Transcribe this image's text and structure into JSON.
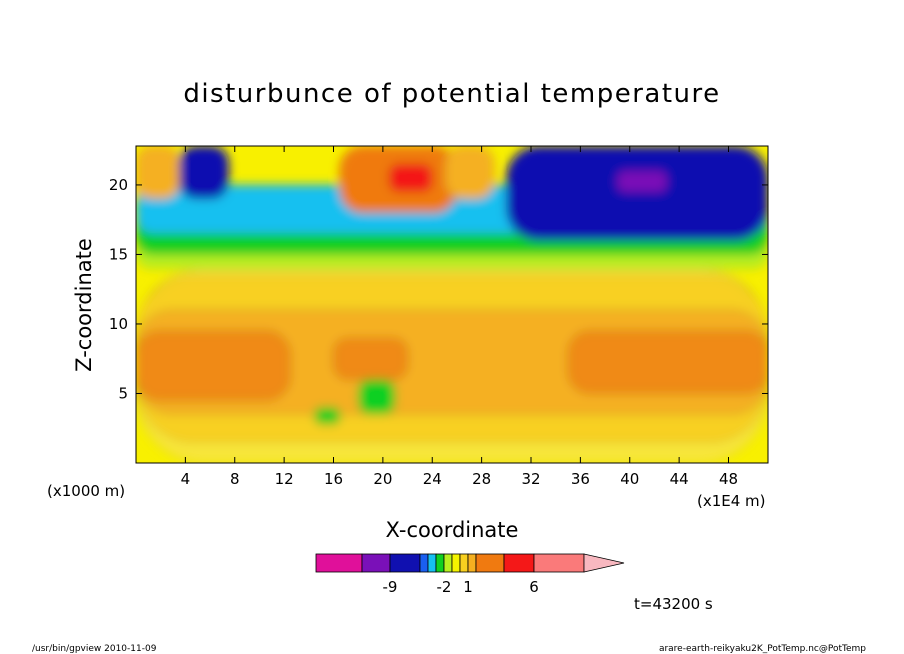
{
  "chart_data": {
    "type": "heatmap",
    "title": "disturbunce of potential temperature",
    "xlabel": "X-coordinate",
    "ylabel": "Z-coordinate",
    "x_unit_label": "(x1000 m)",
    "x_scale_label": "(x1E4 m)",
    "xlim": [
      0,
      51.2
    ],
    "ylim": [
      0,
      22.8
    ],
    "x_ticks": [
      4,
      8,
      12,
      16,
      20,
      24,
      28,
      32,
      36,
      40,
      44,
      48
    ],
    "y_ticks": [
      5,
      10,
      15,
      20
    ],
    "colorbar": {
      "labels": [
        {
          "text": "-9",
          "index": 1
        },
        {
          "text": "-2",
          "index": 5
        },
        {
          "text": "1",
          "index": 8
        },
        {
          "text": "6",
          "index": 11
        }
      ],
      "colors": [
        "#e0109a",
        "#7a10b8",
        "#1010b0",
        "#1a5ff0",
        "#16c0f0",
        "#10d020",
        "#b8f020",
        "#f4f400",
        "#f8d020",
        "#f5b020",
        "#f07a10",
        "#f41818",
        "#fa7a7a",
        "#f8b8c0"
      ]
    },
    "time_label": "t=43200 s",
    "footer_left": "/usr/bin/gpview   2010-11-09",
    "footer_right": "arare-earth-reikyaku2K_PotTemp.nc@PotTemp",
    "regions": [
      {
        "level": "lo1",
        "color": "#f8e63a",
        "x0": 0,
        "x1": 51.2,
        "z0": 0,
        "z1": 14
      },
      {
        "level": "lo2",
        "color": "#f8d020",
        "x0": 0,
        "x1": 51.2,
        "z0": 1.5,
        "z1": 13.5
      },
      {
        "level": "lo3",
        "color": "#f5b020",
        "x0": 0,
        "x1": 51.2,
        "z0": 3.5,
        "z1": 11
      },
      {
        "level": "lo4",
        "color": "#f08a18",
        "x0": 0,
        "x1": 12.5,
        "z0": 4.5,
        "z1": 9.5
      },
      {
        "level": "lo5",
        "color": "#f08a18",
        "x0": 35,
        "x1": 51.2,
        "z0": 5,
        "z1": 9.5
      },
      {
        "level": "lo6",
        "color": "#f08a18",
        "x0": 16,
        "x1": 22,
        "z0": 6,
        "z1": 9
      },
      {
        "level": "mid1",
        "color": "#b8f020",
        "x0": 0,
        "x1": 51.2,
        "z0": 14,
        "z1": 17
      },
      {
        "level": "mid2",
        "color": "#10d020",
        "x0": 0,
        "x1": 51.2,
        "z0": 15,
        "z1": 18.5
      },
      {
        "level": "mid3",
        "color": "#16c0f0",
        "x0": 0,
        "x1": 51.2,
        "z0": 16.5,
        "z1": 20
      },
      {
        "level": "hi1",
        "color": "#1010b0",
        "x0": 3.5,
        "x1": 7.5,
        "z0": 19,
        "z1": 22.8
      },
      {
        "level": "hi2",
        "color": "#1010b0",
        "x0": 30,
        "x1": 51.2,
        "z0": 16,
        "z1": 22.8
      },
      {
        "level": "hi3",
        "color": "#7a10b8",
        "x0": 39,
        "x1": 43,
        "z0": 19.5,
        "z1": 21
      },
      {
        "level": "hi4",
        "color": "#f07a10",
        "x0": 16.5,
        "x1": 26,
        "z0": 18,
        "z1": 22.8
      },
      {
        "level": "hi5",
        "color": "#f41818",
        "x0": 20.5,
        "x1": 24,
        "z0": 19.5,
        "z1": 21.5
      },
      {
        "level": "hi6",
        "color": "#f5b020",
        "x0": 0,
        "x1": 3.5,
        "z0": 19,
        "z1": 22.8
      },
      {
        "level": "hi7",
        "color": "#f5b020",
        "x0": 25,
        "x1": 29,
        "z0": 19,
        "z1": 22.8
      },
      {
        "level": "gn1",
        "color": "#10d020",
        "x0": 18,
        "x1": 21,
        "z0": 3.5,
        "z1": 6
      },
      {
        "level": "gn2",
        "color": "#10d020",
        "x0": 14.5,
        "x1": 16.5,
        "z0": 2.8,
        "z1": 4
      }
    ]
  }
}
